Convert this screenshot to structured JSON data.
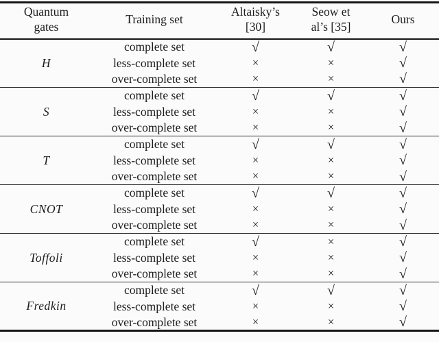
{
  "page": {
    "background": "#fbfbfb",
    "line_color": "#141414"
  },
  "symbols": {
    "check": "√",
    "cross": "×"
  },
  "header": {
    "quantum_gates": {
      "line1": "Quantum",
      "line2": "gates"
    },
    "training_set": {
      "line1": "Training set",
      "line2": ""
    },
    "altaisky": {
      "line1": "Altaisky’s",
      "line2": "[30]"
    },
    "seow": {
      "line1": "Seow et",
      "line2": "al’s [35]"
    },
    "ours": {
      "line1": "Ours",
      "line2": ""
    }
  },
  "groups": [
    {
      "gate": "H",
      "rows": [
        {
          "training_set": "complete set",
          "marks": [
            "check",
            "check",
            "check"
          ]
        },
        {
          "training_set": "less-complete set",
          "marks": [
            "cross",
            "cross",
            "check"
          ]
        },
        {
          "training_set": "over-complete set",
          "marks": [
            "cross",
            "cross",
            "check"
          ]
        }
      ]
    },
    {
      "gate": "S",
      "rows": [
        {
          "training_set": "complete set",
          "marks": [
            "check",
            "check",
            "check"
          ]
        },
        {
          "training_set": "less-complete set",
          "marks": [
            "cross",
            "cross",
            "check"
          ]
        },
        {
          "training_set": "over-complete set",
          "marks": [
            "cross",
            "cross",
            "check"
          ]
        }
      ]
    },
    {
      "gate": "T",
      "rows": [
        {
          "training_set": "complete set",
          "marks": [
            "check",
            "check",
            "check"
          ]
        },
        {
          "training_set": "less-complete set",
          "marks": [
            "cross",
            "cross",
            "check"
          ]
        },
        {
          "training_set": "over-complete set",
          "marks": [
            "cross",
            "cross",
            "check"
          ]
        }
      ]
    },
    {
      "gate": "CNOT",
      "rows": [
        {
          "training_set": "complete set",
          "marks": [
            "check",
            "check",
            "check"
          ]
        },
        {
          "training_set": "less-complete set",
          "marks": [
            "cross",
            "cross",
            "check"
          ]
        },
        {
          "training_set": "over-complete set",
          "marks": [
            "cross",
            "cross",
            "check"
          ]
        }
      ]
    },
    {
      "gate": "Toffoli",
      "rows": [
        {
          "training_set": "complete set",
          "marks": [
            "check",
            "cross",
            "check"
          ]
        },
        {
          "training_set": "less-complete set",
          "marks": [
            "cross",
            "cross",
            "check"
          ]
        },
        {
          "training_set": "over-complete set",
          "marks": [
            "cross",
            "cross",
            "check"
          ]
        }
      ]
    },
    {
      "gate": "Fredkin",
      "rows": [
        {
          "training_set": "complete set",
          "marks": [
            "check",
            "check",
            "check"
          ]
        },
        {
          "training_set": "less-complete set",
          "marks": [
            "cross",
            "cross",
            "check"
          ]
        },
        {
          "training_set": "over-complete set",
          "marks": [
            "cross",
            "cross",
            "check"
          ]
        }
      ]
    }
  ]
}
